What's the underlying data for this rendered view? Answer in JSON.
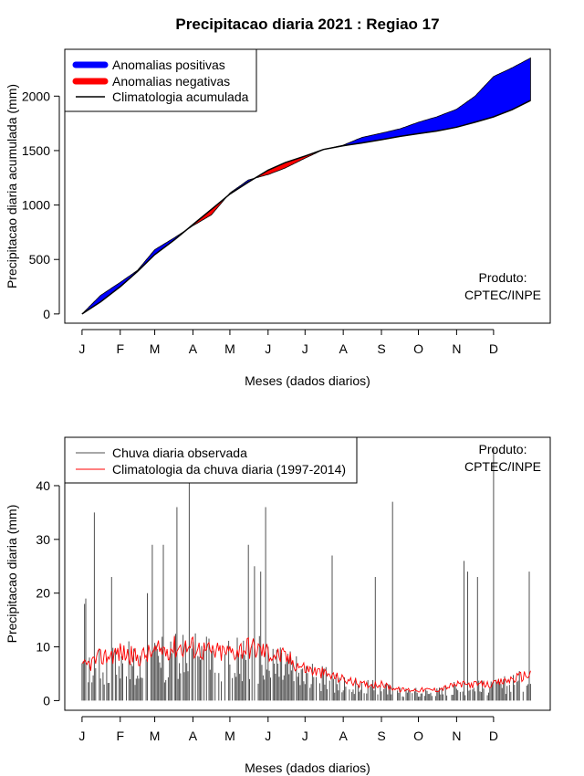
{
  "title": "Precipitacao diaria 2021 : Regiao 17",
  "chart_data": [
    {
      "type": "area",
      "ylabel": "Precipitacao diaria acumulada (mm)",
      "xlabel": "Meses (dados diarios)",
      "x_tick_labels": [
        "J",
        "F",
        "M",
        "A",
        "M",
        "J",
        "J",
        "A",
        "S",
        "O",
        "N",
        "D"
      ],
      "y_ticks": [
        0,
        500,
        1000,
        1500,
        2000
      ],
      "ylim": [
        -85,
        2430
      ],
      "xlim": [
        -14,
        380
      ],
      "legend": [
        {
          "label": "Anomalias positivas",
          "color": "#0000ff"
        },
        {
          "label": "Anomalias negativas",
          "color": "#ff0000"
        },
        {
          "label": "Climatologia acumulada",
          "color": "#000000"
        }
      ],
      "annotation": [
        "Produto:",
        "CPTEC/INPE"
      ],
      "climatology_cumulative": {
        "day": [
          0,
          15,
          31,
          45,
          59,
          75,
          90,
          105,
          120,
          135,
          151,
          165,
          181,
          196,
          212,
          227,
          243,
          258,
          273,
          288,
          304,
          319,
          334,
          349,
          364
        ],
        "value": [
          0,
          110,
          250,
          390,
          545,
          680,
          820,
          960,
          1100,
          1210,
          1320,
          1390,
          1450,
          1510,
          1545,
          1570,
          1600,
          1630,
          1655,
          1680,
          1715,
          1760,
          1810,
          1875,
          1960
        ]
      },
      "observed_cumulative": {
        "day": [
          0,
          15,
          31,
          45,
          59,
          75,
          90,
          105,
          120,
          135,
          151,
          165,
          181,
          196,
          212,
          227,
          243,
          258,
          273,
          288,
          304,
          319,
          334,
          349,
          364
        ],
        "value": [
          0,
          170,
          290,
          400,
          590,
          700,
          810,
          910,
          1110,
          1230,
          1280,
          1340,
          1430,
          1510,
          1550,
          1620,
          1660,
          1700,
          1760,
          1810,
          1880,
          2000,
          2180,
          2260,
          2350
        ]
      }
    },
    {
      "type": "bar",
      "ylabel": "Precipitacao diaria (mm)",
      "xlabel": "Meses (dados diarios)",
      "x_tick_labels": [
        "J",
        "F",
        "M",
        "A",
        "M",
        "J",
        "J",
        "A",
        "S",
        "O",
        "N",
        "D"
      ],
      "y_ticks": [
        0,
        10,
        20,
        30,
        40
      ],
      "ylim": [
        -1.8,
        49
      ],
      "xlim": [
        -14,
        380
      ],
      "legend": [
        {
          "label": "Chuva diaria observada",
          "color": "#505050"
        },
        {
          "label": "Climatologia da chuva diaria (1997-2014)",
          "color": "#ff0000"
        }
      ],
      "annotation": [
        "Produto:",
        "CPTEC/INPE"
      ],
      "observed_daily_peaks": [
        {
          "day": 2,
          "value": 18
        },
        {
          "day": 3,
          "value": 19
        },
        {
          "day": 10,
          "value": 35
        },
        {
          "day": 24,
          "value": 23
        },
        {
          "day": 53,
          "value": 20
        },
        {
          "day": 57,
          "value": 29
        },
        {
          "day": 66,
          "value": 29
        },
        {
          "day": 72,
          "value": 11
        },
        {
          "day": 77,
          "value": 36
        },
        {
          "day": 87,
          "value": 41
        },
        {
          "day": 135,
          "value": 29
        },
        {
          "day": 140,
          "value": 25
        },
        {
          "day": 145,
          "value": 24
        },
        {
          "day": 149,
          "value": 36
        },
        {
          "day": 203,
          "value": 27
        },
        {
          "day": 238,
          "value": 23
        },
        {
          "day": 252,
          "value": 37
        },
        {
          "day": 310,
          "value": 26
        },
        {
          "day": 313,
          "value": 24
        },
        {
          "day": 321,
          "value": 23
        },
        {
          "day": 334,
          "value": 47
        },
        {
          "day": 363,
          "value": 24
        }
      ],
      "climatology_daily": {
        "day": [
          0,
          15,
          31,
          45,
          59,
          75,
          90,
          105,
          120,
          135,
          151,
          165,
          181,
          196,
          212,
          227,
          243,
          258,
          273,
          288,
          304,
          319,
          334,
          349,
          364
        ],
        "value": [
          6,
          8,
          9,
          8,
          9,
          10,
          10,
          9,
          9,
          10,
          9,
          8,
          6,
          5,
          4,
          3,
          3,
          2,
          2,
          2,
          3,
          3,
          3,
          4,
          5
        ]
      }
    }
  ]
}
